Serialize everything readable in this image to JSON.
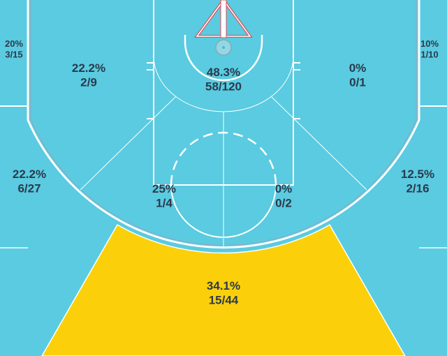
{
  "chart_data": {
    "type": "heatmap",
    "colors": {
      "court": "#5acbe0",
      "highlight": "#fbd00a",
      "lines": "#ffffff",
      "text": "#2b3a4c",
      "backboard": "#d9525a"
    },
    "zones": [
      {
        "id": "left-corner-3",
        "pct": "20%",
        "made_att": "3/15",
        "made": 3,
        "attempts": 15
      },
      {
        "id": "left-mid-baseline",
        "pct": "22.2%",
        "made_att": "2/9",
        "made": 2,
        "attempts": 9
      },
      {
        "id": "paint",
        "pct": "48.3%",
        "made_att": "58/120",
        "made": 58,
        "attempts": 120
      },
      {
        "id": "right-mid-baseline",
        "pct": "0%",
        "made_att": "0/1",
        "made": 0,
        "attempts": 1
      },
      {
        "id": "right-corner-3",
        "pct": "10%",
        "made_att": "1/10",
        "made": 1,
        "attempts": 10
      },
      {
        "id": "left-wing-3",
        "pct": "22.2%",
        "made_att": "6/27",
        "made": 6,
        "attempts": 27
      },
      {
        "id": "left-elbow-mid",
        "pct": "25%",
        "made_att": "1/4",
        "made": 1,
        "attempts": 4
      },
      {
        "id": "right-elbow-mid",
        "pct": "0%",
        "made_att": "0/2",
        "made": 0,
        "attempts": 2
      },
      {
        "id": "right-wing-3",
        "pct": "12.5%",
        "made_att": "2/16",
        "made": 2,
        "attempts": 16
      },
      {
        "id": "top-of-key-3",
        "pct": "34.1%",
        "made_att": "15/44",
        "made": 15,
        "attempts": 44,
        "highlighted": true
      }
    ]
  }
}
